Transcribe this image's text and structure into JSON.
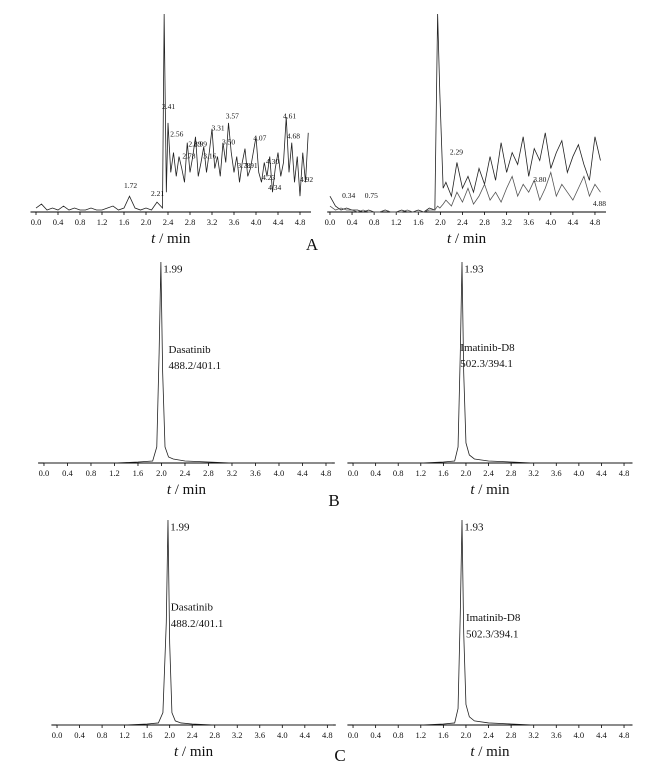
{
  "panel_labels": [
    "A",
    "B",
    "C"
  ],
  "chart_data": [
    {
      "type": "line",
      "xlim": [
        -0.1,
        5.0
      ],
      "ylim": [
        0,
        100
      ],
      "xticks": [
        {
          "value": 0,
          "label": "0.0"
        },
        {
          "value": 0.4,
          "label": "0.4"
        },
        {
          "value": 0.8,
          "label": "0.8"
        },
        {
          "value": 1.2,
          "label": "1.2"
        },
        {
          "value": 1.6,
          "label": "1.6"
        },
        {
          "value": 2.0,
          "label": "2.0"
        },
        {
          "value": 2.4,
          "label": "2.4"
        },
        {
          "value": 2.8,
          "label": "2.8"
        },
        {
          "value": 3.2,
          "label": "3.2"
        },
        {
          "value": 3.6,
          "label": "3.6"
        },
        {
          "value": 4.0,
          "label": "4.0"
        },
        {
          "value": 4.4,
          "label": "4.4"
        },
        {
          "value": 4.8,
          "label": "4.8"
        }
      ],
      "xlabel": {
        "symbol": "t",
        "unit": "/ min"
      },
      "x": [
        0,
        0.1,
        0.2,
        0.3,
        0.4,
        0.5,
        0.6,
        0.7,
        0.8,
        0.9,
        1.0,
        1.1,
        1.2,
        1.3,
        1.4,
        1.5,
        1.6,
        1.7,
        1.8,
        1.9,
        2.0,
        2.1,
        2.2,
        2.3,
        2.33,
        2.37,
        2.4,
        2.45,
        2.5,
        2.55,
        2.6,
        2.65,
        2.7,
        2.75,
        2.8,
        2.85,
        2.9,
        2.95,
        3.0,
        3.05,
        3.1,
        3.15,
        3.2,
        3.25,
        3.3,
        3.35,
        3.4,
        3.45,
        3.5,
        3.55,
        3.6,
        3.65,
        3.7,
        3.75,
        3.8,
        3.85,
        3.9,
        3.95,
        4.0,
        4.05,
        4.1,
        4.15,
        4.2,
        4.25,
        4.3,
        4.35,
        4.4,
        4.45,
        4.5,
        4.55,
        4.6,
        4.65,
        4.7,
        4.75,
        4.8,
        4.85,
        4.9,
        4.95
      ],
      "series": [
        {
          "color": "#222222",
          "values": [
            2,
            4,
            1,
            2,
            1,
            3,
            1,
            2,
            1,
            1,
            2,
            1,
            1,
            2,
            3,
            1,
            2,
            8,
            2,
            1,
            2,
            1,
            5,
            2,
            100,
            10,
            45,
            20,
            30,
            18,
            28,
            22,
            15,
            35,
            20,
            28,
            38,
            18,
            25,
            33,
            20,
            30,
            42,
            22,
            28,
            18,
            35,
            25,
            45,
            30,
            20,
            28,
            15,
            25,
            32,
            18,
            22,
            30,
            38,
            20,
            15,
            25,
            18,
            28,
            10,
            22,
            30,
            18,
            25,
            48,
            20,
            35,
            15,
            28,
            8,
            30,
            15,
            40
          ]
        }
      ],
      "annotations": [
        {
          "text": "1.72",
          "x": 1.72,
          "y": 13
        },
        {
          "text": "2.21",
          "x": 2.21,
          "y": 9
        },
        {
          "text": "2.41",
          "x": 2.41,
          "y": 53
        },
        {
          "text": "2.56",
          "x": 2.56,
          "y": 39
        },
        {
          "text": "2.78",
          "x": 2.78,
          "y": 28
        },
        {
          "text": "2.89",
          "x": 2.89,
          "y": 34
        },
        {
          "text": "2.99",
          "x": 2.99,
          "y": 34
        },
        {
          "text": "3.16",
          "x": 3.16,
          "y": 28
        },
        {
          "text": "3.31",
          "x": 3.31,
          "y": 42
        },
        {
          "text": "3.50",
          "x": 3.5,
          "y": 35
        },
        {
          "text": "3.57",
          "x": 3.57,
          "y": 48
        },
        {
          "text": "3.78",
          "x": 3.78,
          "y": 23
        },
        {
          "text": "3.91",
          "x": 3.91,
          "y": 23
        },
        {
          "text": "4.07",
          "x": 4.07,
          "y": 37
        },
        {
          "text": "4.23",
          "x": 4.23,
          "y": 17
        },
        {
          "text": "4.30",
          "x": 4.3,
          "y": 25
        },
        {
          "text": "4.34",
          "x": 4.34,
          "y": 12
        },
        {
          "text": "4.61",
          "x": 4.61,
          "y": 48
        },
        {
          "text": "4.68",
          "x": 4.68,
          "y": 38
        },
        {
          "text": "4.92",
          "x": 4.92,
          "y": 16
        }
      ]
    },
    {
      "type": "line",
      "xlim": [
        -0.05,
        5.0
      ],
      "ylim": [
        0,
        100
      ],
      "xticks": [
        {
          "value": 0,
          "label": "0.0"
        },
        {
          "value": 0.4,
          "label": "0.4"
        },
        {
          "value": 0.8,
          "label": "0.8"
        },
        {
          "value": 1.2,
          "label": "1.2"
        },
        {
          "value": 1.6,
          "label": "1.6"
        },
        {
          "value": 2.0,
          "label": "2.0"
        },
        {
          "value": 2.4,
          "label": "2.4"
        },
        {
          "value": 2.8,
          "label": "2.8"
        },
        {
          "value": 3.2,
          "label": "3.2"
        },
        {
          "value": 3.6,
          "label": "3.6"
        },
        {
          "value": 4.0,
          "label": "4.0"
        },
        {
          "value": 4.4,
          "label": "4.4"
        },
        {
          "value": 4.8,
          "label": "4.8"
        }
      ],
      "xlabel": {
        "symbol": "t",
        "unit": "/ min"
      },
      "x": [
        0,
        0.1,
        0.2,
        0.3,
        0.4,
        0.5,
        0.6,
        0.7,
        0.8,
        0.9,
        1.0,
        1.1,
        1.2,
        1.3,
        1.4,
        1.5,
        1.6,
        1.7,
        1.8,
        1.9,
        1.95,
        1.99,
        2.05,
        2.1,
        2.2,
        2.3,
        2.4,
        2.5,
        2.6,
        2.7,
        2.8,
        2.9,
        3.0,
        3.1,
        3.2,
        3.3,
        3.4,
        3.5,
        3.6,
        3.7,
        3.8,
        3.9,
        4.0,
        4.1,
        4.2,
        4.3,
        4.4,
        4.5,
        4.6,
        4.7,
        4.8,
        4.9
      ],
      "series": [
        {
          "color": "#222222",
          "values": [
            8,
            3,
            1,
            2,
            1,
            1,
            0,
            1,
            0,
            0,
            1,
            0,
            0,
            1,
            0,
            0,
            1,
            0,
            2,
            1,
            100,
            60,
            12,
            15,
            8,
            25,
            12,
            18,
            10,
            22,
            14,
            28,
            16,
            35,
            20,
            30,
            24,
            38,
            18,
            32,
            26,
            40,
            22,
            30,
            36,
            20,
            28,
            34,
            24,
            16,
            38,
            26
          ]
        },
        {
          "color": "#555555",
          "values": [
            3,
            1,
            2,
            1,
            1,
            0,
            1,
            0,
            0,
            0,
            1,
            0,
            0,
            0,
            1,
            0,
            0,
            0,
            1,
            1,
            3,
            2,
            4,
            6,
            3,
            10,
            5,
            12,
            4,
            8,
            14,
            6,
            10,
            5,
            12,
            18,
            8,
            14,
            10,
            16,
            6,
            12,
            20,
            8,
            14,
            10,
            6,
            12,
            18,
            8,
            14,
            10
          ]
        }
      ],
      "annotations": [
        {
          "text": "0.34",
          "x": 0.34,
          "y": 8
        },
        {
          "text": "0.75",
          "x": 0.75,
          "y": 8
        },
        {
          "text": "2.29",
          "x": 2.29,
          "y": 30
        },
        {
          "text": "3.80",
          "x": 3.8,
          "y": 16
        },
        {
          "text": "4.88",
          "x": 4.88,
          "y": 4
        }
      ]
    },
    {
      "type": "line",
      "xlim": [
        -0.1,
        4.95
      ],
      "ylim": [
        0,
        100
      ],
      "xticks": [
        {
          "value": 0,
          "label": "0.0"
        },
        {
          "value": 0.4,
          "label": "0.4"
        },
        {
          "value": 0.8,
          "label": "0.8"
        },
        {
          "value": 1.2,
          "label": "1.2"
        },
        {
          "value": 1.6,
          "label": "1.6"
        },
        {
          "value": 2.0,
          "label": "2.0"
        },
        {
          "value": 2.4,
          "label": "2.4"
        },
        {
          "value": 2.8,
          "label": "2.8"
        },
        {
          "value": 3.2,
          "label": "3.2"
        },
        {
          "value": 3.6,
          "label": "3.6"
        },
        {
          "value": 4.0,
          "label": "4.0"
        },
        {
          "value": 4.4,
          "label": "4.4"
        },
        {
          "value": 4.8,
          "label": "4.8"
        }
      ],
      "xlabel": {
        "symbol": "t",
        "unit": "/ min"
      },
      "x": [
        0,
        0.4,
        0.8,
        1.2,
        1.6,
        1.85,
        1.92,
        1.96,
        1.99,
        2.02,
        2.06,
        2.12,
        2.2,
        2.4,
        2.8,
        3.2,
        4.0,
        4.9
      ],
      "series": [
        {
          "color": "#222222",
          "values": [
            0,
            0,
            0,
            0,
            0.5,
            1,
            8,
            55,
            100,
            45,
            8,
            3,
            2,
            1,
            0.5,
            0,
            0,
            0
          ]
        }
      ],
      "annotations": [
        {
          "text": "1.99",
          "x": 2.03,
          "y": 96
        },
        {
          "text": "Dasatinib",
          "x": 2.12,
          "y": 56
        },
        {
          "text": "488.2/401.1",
          "x": 2.12,
          "y": 48
        }
      ]
    },
    {
      "type": "line",
      "xlim": [
        -0.1,
        4.95
      ],
      "ylim": [
        0,
        100
      ],
      "xticks": [
        {
          "value": 0,
          "label": "0.0"
        },
        {
          "value": 0.4,
          "label": "0.4"
        },
        {
          "value": 0.8,
          "label": "0.8"
        },
        {
          "value": 1.2,
          "label": "1.2"
        },
        {
          "value": 1.6,
          "label": "1.6"
        },
        {
          "value": 2.0,
          "label": "2.0"
        },
        {
          "value": 2.4,
          "label": "2.4"
        },
        {
          "value": 2.8,
          "label": "2.8"
        },
        {
          "value": 3.2,
          "label": "3.2"
        },
        {
          "value": 3.6,
          "label": "3.6"
        },
        {
          "value": 4.0,
          "label": "4.0"
        },
        {
          "value": 4.4,
          "label": "4.4"
        },
        {
          "value": 4.8,
          "label": "4.8"
        }
      ],
      "xlabel": {
        "symbol": "t",
        "unit": "/ min"
      },
      "x": [
        0,
        0.4,
        0.8,
        1.2,
        1.6,
        1.8,
        1.86,
        1.9,
        1.93,
        1.96,
        2.0,
        2.06,
        2.15,
        2.4,
        2.8,
        3.2,
        4.0,
        4.9
      ],
      "series": [
        {
          "color": "#222222",
          "values": [
            0,
            0,
            0,
            0,
            0.5,
            1,
            8,
            55,
            100,
            45,
            10,
            4,
            2,
            1,
            0.5,
            0,
            0,
            0
          ]
        }
      ],
      "annotations": [
        {
          "text": "1.93",
          "x": 1.97,
          "y": 96
        },
        {
          "text": "Imatinib-D8",
          "x": 1.9,
          "y": 57
        },
        {
          "text": "502.3/394.1",
          "x": 1.9,
          "y": 49
        }
      ]
    },
    {
      "type": "line",
      "xlim": [
        -0.1,
        4.95
      ],
      "ylim": [
        0,
        100
      ],
      "xticks": [
        {
          "value": 0,
          "label": "0.0"
        },
        {
          "value": 0.4,
          "label": "0.4"
        },
        {
          "value": 0.8,
          "label": "0.8"
        },
        {
          "value": 1.2,
          "label": "1.2"
        },
        {
          "value": 1.6,
          "label": "1.6"
        },
        {
          "value": 2.0,
          "label": "2.0"
        },
        {
          "value": 2.4,
          "label": "2.4"
        },
        {
          "value": 2.8,
          "label": "2.8"
        },
        {
          "value": 3.2,
          "label": "3.2"
        },
        {
          "value": 3.6,
          "label": "3.6"
        },
        {
          "value": 4.0,
          "label": "4.0"
        },
        {
          "value": 4.4,
          "label": "4.4"
        },
        {
          "value": 4.8,
          "label": "4.8"
        }
      ],
      "xlabel": {
        "symbol": "t",
        "unit": "/ min"
      },
      "x": [
        0,
        0.4,
        0.8,
        1.2,
        1.6,
        1.8,
        1.88,
        1.94,
        1.97,
        2.0,
        2.04,
        2.1,
        2.2,
        2.4,
        2.8,
        3.2,
        4.0,
        4.9
      ],
      "series": [
        {
          "color": "#222222",
          "values": [
            0,
            0,
            0,
            0,
            0.5,
            1,
            6,
            50,
            100,
            40,
            6,
            2,
            1,
            0.5,
            0,
            0,
            0,
            0
          ]
        }
      ],
      "annotations": [
        {
          "text": "1.99",
          "x": 2.01,
          "y": 96
        },
        {
          "text": "Dasatinib",
          "x": 2.02,
          "y": 57
        },
        {
          "text": "488.2/401.1",
          "x": 2.02,
          "y": 49
        }
      ]
    },
    {
      "type": "line",
      "xlim": [
        -0.1,
        4.95
      ],
      "ylim": [
        0,
        100
      ],
      "xticks": [
        {
          "value": 0,
          "label": "0.0"
        },
        {
          "value": 0.4,
          "label": "0.4"
        },
        {
          "value": 0.8,
          "label": "0.8"
        },
        {
          "value": 1.2,
          "label": "1.2"
        },
        {
          "value": 1.6,
          "label": "1.6"
        },
        {
          "value": 2.0,
          "label": "2.0"
        },
        {
          "value": 2.4,
          "label": "2.4"
        },
        {
          "value": 2.8,
          "label": "2.8"
        },
        {
          "value": 3.2,
          "label": "3.2"
        },
        {
          "value": 3.6,
          "label": "3.6"
        },
        {
          "value": 4.0,
          "label": "4.0"
        },
        {
          "value": 4.4,
          "label": "4.4"
        },
        {
          "value": 4.8,
          "label": "4.8"
        }
      ],
      "xlabel": {
        "symbol": "t",
        "unit": "/ min"
      },
      "x": [
        0,
        0.4,
        0.8,
        1.2,
        1.6,
        1.8,
        1.86,
        1.9,
        1.93,
        1.96,
        2.0,
        2.06,
        2.15,
        2.4,
        2.8,
        3.2,
        4.0,
        4.9
      ],
      "series": [
        {
          "color": "#222222",
          "values": [
            0,
            0,
            0,
            0,
            0.5,
            1,
            8,
            55,
            100,
            45,
            10,
            4,
            2,
            1,
            0.5,
            0,
            0,
            0
          ]
        }
      ],
      "annotations": [
        {
          "text": "1.93",
          "x": 1.97,
          "y": 96
        },
        {
          "text": "Imatinib-D8",
          "x": 2.0,
          "y": 52
        },
        {
          "text": "502.3/394.1",
          "x": 2.0,
          "y": 44
        }
      ]
    }
  ]
}
